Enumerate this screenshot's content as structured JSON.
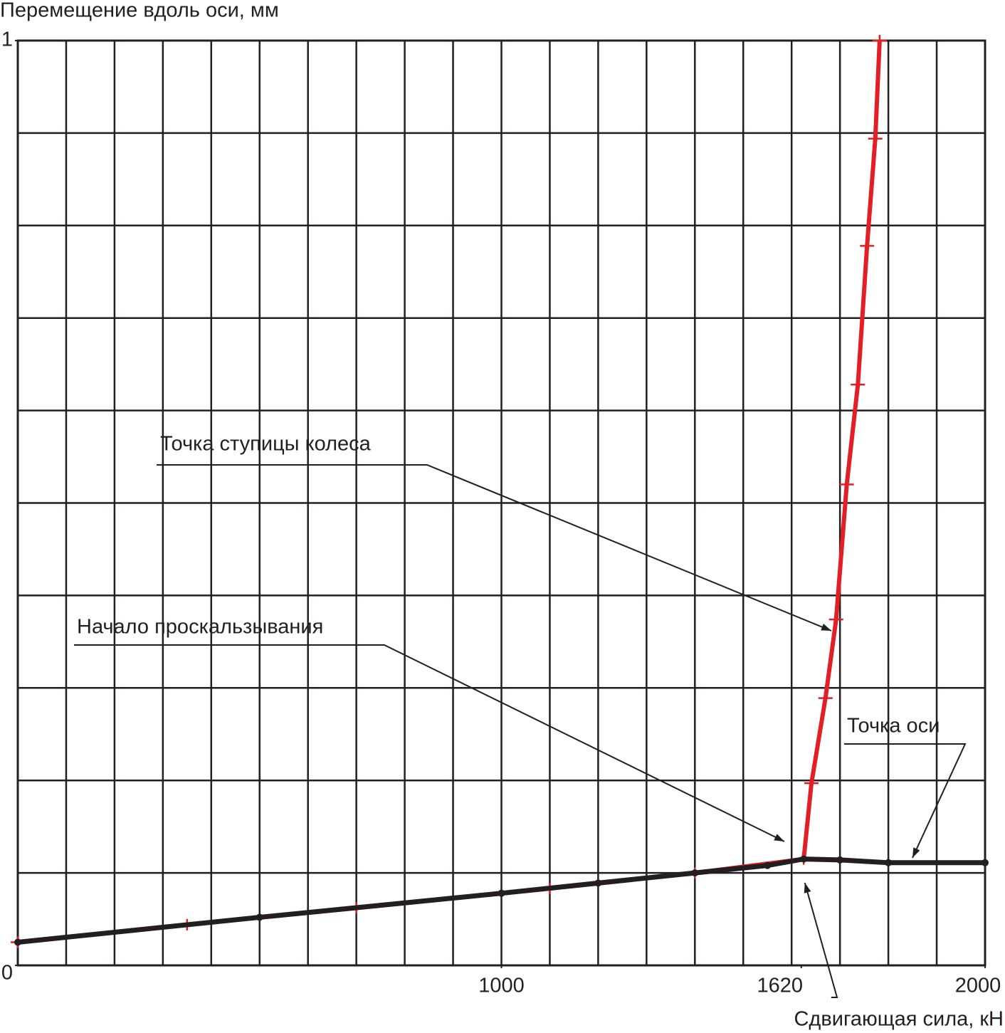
{
  "chart_data": {
    "type": "line",
    "title": "Перемещение вдоль оси, мм",
    "x_label": "Сдвигающая сила, кН",
    "xlim": [
      0,
      2000
    ],
    "ylim": [
      0,
      1
    ],
    "xticks": [
      1000,
      1620,
      2000
    ],
    "yticks": [
      0,
      1
    ],
    "xgrid": [
      100,
      200,
      300,
      400,
      500,
      600,
      700,
      800,
      900,
      1000,
      1100,
      1200,
      1300,
      1400,
      1500,
      1600,
      1700,
      1800,
      1900
    ],
    "ygrid": [
      0.1,
      0.2,
      0.3,
      0.4,
      0.5,
      0.6,
      0.7,
      0.8,
      0.9
    ],
    "grid": true,
    "annotations": [
      "Точка ступицы колеса",
      "Начало проскальзывания",
      "Точка оси"
    ],
    "series": [
      {
        "name": "Точка ступицы колеса",
        "color": "#e31e24",
        "x": [
          0,
          350,
          700,
          1100,
          1400,
          1625,
          1641,
          1670,
          1692,
          1714,
          1737,
          1756,
          1773,
          1782
        ],
        "values": [
          0.025,
          0.044,
          0.062,
          0.083,
          0.1,
          0.115,
          0.197,
          0.289,
          0.374,
          0.52,
          0.628,
          0.778,
          0.894,
          1.0
        ]
      },
      {
        "name": "Точка оси",
        "color": "#231f20",
        "x": [
          0,
          500,
          1000,
          1200,
          1400,
          1550,
          1625,
          1700,
          1800,
          2000
        ],
        "values": [
          0.025,
          0.052,
          0.078,
          0.089,
          0.1,
          0.108,
          0.115,
          0.114,
          0.111,
          0.111
        ]
      }
    ]
  }
}
